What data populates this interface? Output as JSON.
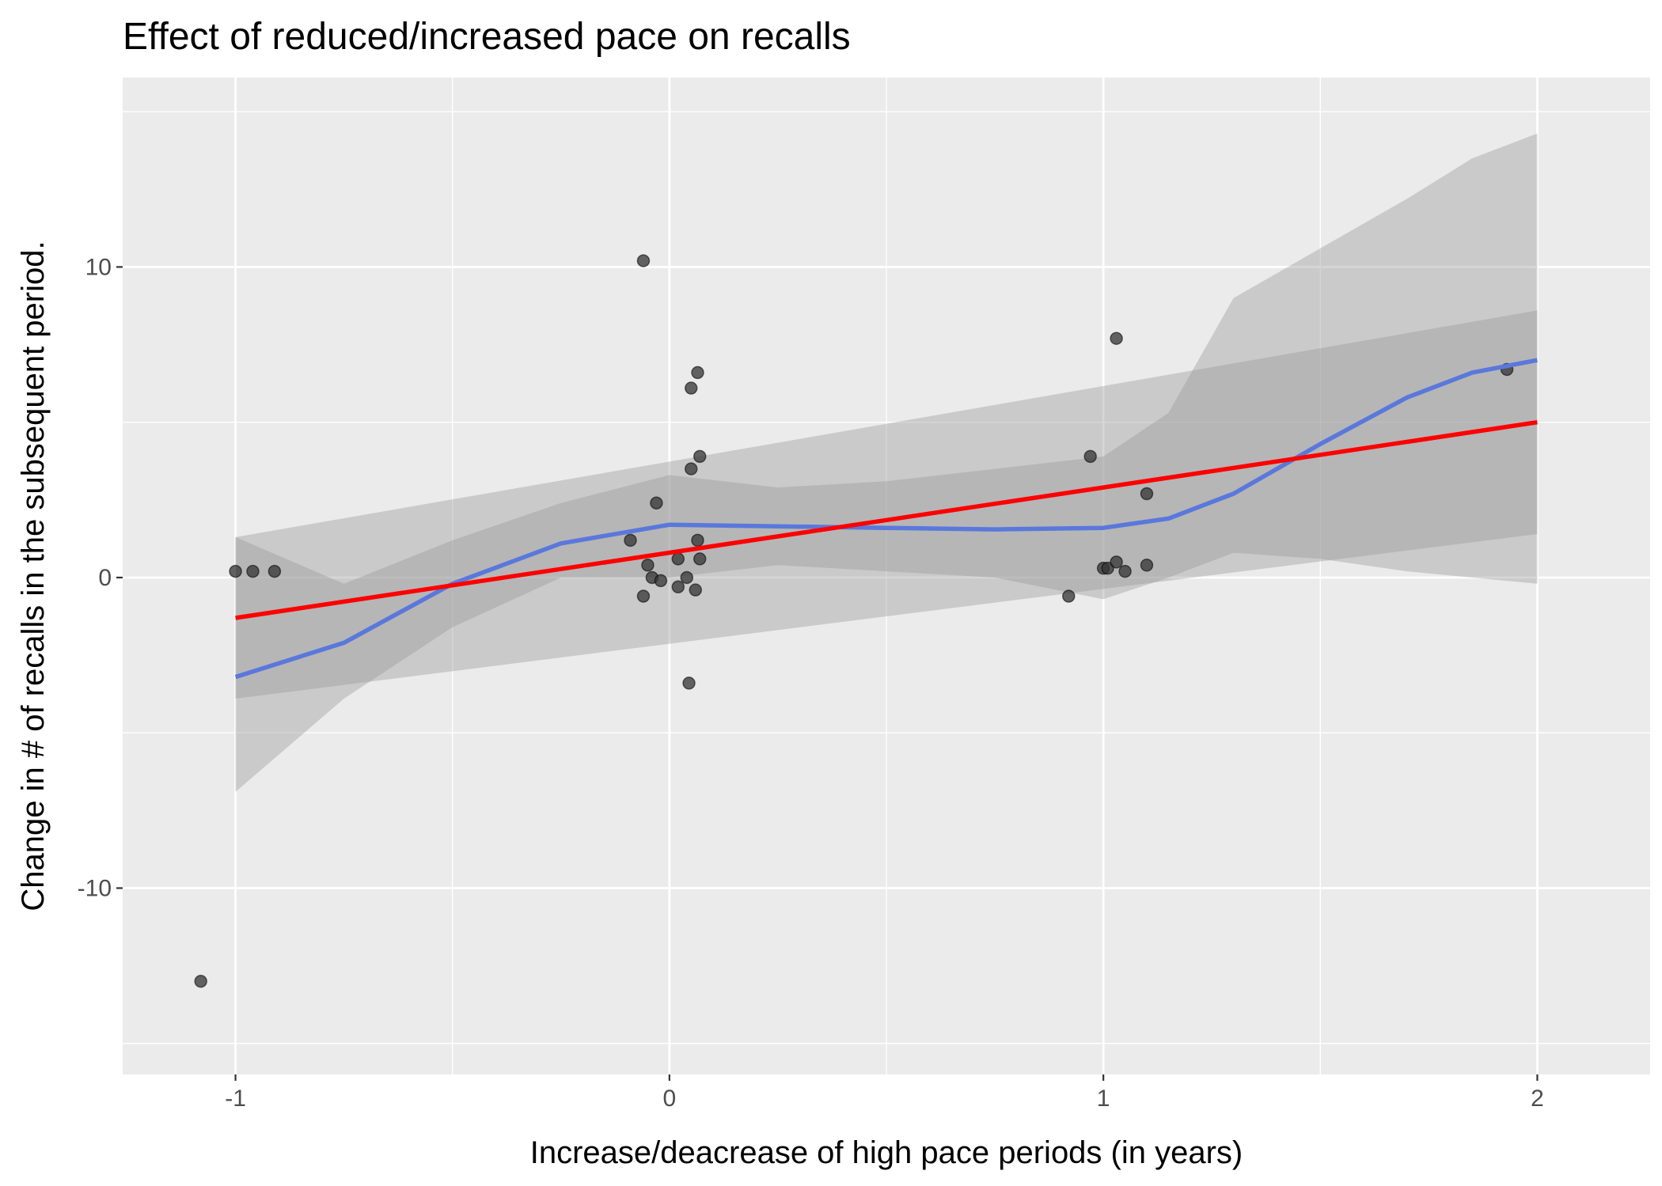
{
  "chart_data": {
    "type": "scatter",
    "title": "Effect of reduced/increased pace on recalls",
    "xlabel": "Increase/deacrease of high pace periods (in years)",
    "ylabel": "Change in # of recalls in the subsequent period.",
    "xlim": [
      -1.26,
      2.26
    ],
    "ylim": [
      -16,
      16.1
    ],
    "x_ticks": [
      -1,
      0,
      1,
      2
    ],
    "x_tick_labels": [
      "-1",
      "0",
      "1",
      "2"
    ],
    "y_ticks": [
      -10,
      0,
      10
    ],
    "y_tick_labels": [
      "-10",
      "0",
      "10"
    ],
    "grid": true,
    "legend": "none",
    "points": [
      {
        "x": -1.08,
        "y": -13.0
      },
      {
        "x": -1.0,
        "y": 0.2
      },
      {
        "x": -0.96,
        "y": 0.2
      },
      {
        "x": -0.91,
        "y": 0.2
      },
      {
        "x": -0.09,
        "y": 1.2
      },
      {
        "x": -0.06,
        "y": 10.2
      },
      {
        "x": -0.06,
        "y": -0.6
      },
      {
        "x": -0.05,
        "y": 0.4
      },
      {
        "x": -0.04,
        "y": 0.0
      },
      {
        "x": -0.03,
        "y": 2.4
      },
      {
        "x": -0.02,
        "y": -0.1
      },
      {
        "x": 0.02,
        "y": 0.6
      },
      {
        "x": 0.02,
        "y": -0.3
      },
      {
        "x": 0.04,
        "y": 0.0
      },
      {
        "x": 0.045,
        "y": -3.4
      },
      {
        "x": 0.05,
        "y": 6.1
      },
      {
        "x": 0.05,
        "y": 3.5
      },
      {
        "x": 0.06,
        "y": -0.4
      },
      {
        "x": 0.065,
        "y": 1.2
      },
      {
        "x": 0.065,
        "y": 6.6
      },
      {
        "x": 0.07,
        "y": 0.6
      },
      {
        "x": 0.07,
        "y": 3.9
      },
      {
        "x": 0.92,
        "y": -0.6
      },
      {
        "x": 0.97,
        "y": 3.9
      },
      {
        "x": 1.0,
        "y": 0.3
      },
      {
        "x": 1.01,
        "y": 0.3
      },
      {
        "x": 1.03,
        "y": 7.7
      },
      {
        "x": 1.03,
        "y": 0.5
      },
      {
        "x": 1.05,
        "y": 0.2
      },
      {
        "x": 1.1,
        "y": 2.7
      },
      {
        "x": 1.1,
        "y": 0.4
      },
      {
        "x": 1.93,
        "y": 6.7
      }
    ],
    "series": [
      {
        "type": "linear-fit",
        "color": "#ff0000",
        "x": [
          -1.0,
          2.0
        ],
        "y": [
          -1.3,
          5.0
        ],
        "ci_lower": [
          -3.9,
          1.4
        ],
        "ci_upper": [
          1.3,
          8.6
        ]
      },
      {
        "type": "smooth-fit",
        "color": "#5a78dc",
        "x": [
          -1.0,
          -0.75,
          -0.5,
          -0.25,
          0.0,
          0.25,
          0.5,
          0.75,
          1.0,
          1.15,
          1.3,
          1.5,
          1.7,
          1.85,
          2.0
        ],
        "y": [
          -3.2,
          -2.1,
          -0.2,
          1.1,
          1.7,
          1.65,
          1.6,
          1.55,
          1.6,
          1.9,
          2.7,
          4.3,
          5.8,
          6.6,
          7.0
        ],
        "ci_lower": [
          -6.9,
          -3.9,
          -1.6,
          0.0,
          0.0,
          0.4,
          0.2,
          0.0,
          -0.7,
          0.0,
          0.8,
          0.6,
          0.2,
          0.0,
          -0.2
        ],
        "ci_upper": [
          1.3,
          -0.2,
          1.2,
          2.4,
          3.3,
          2.9,
          3.1,
          3.5,
          3.9,
          5.3,
          9.0,
          10.6,
          12.2,
          13.5,
          14.3
        ]
      }
    ],
    "colors": {
      "panel_background": "#ebebeb",
      "grid": "#ffffff",
      "ribbon": "#999999",
      "point": "#333333"
    }
  }
}
